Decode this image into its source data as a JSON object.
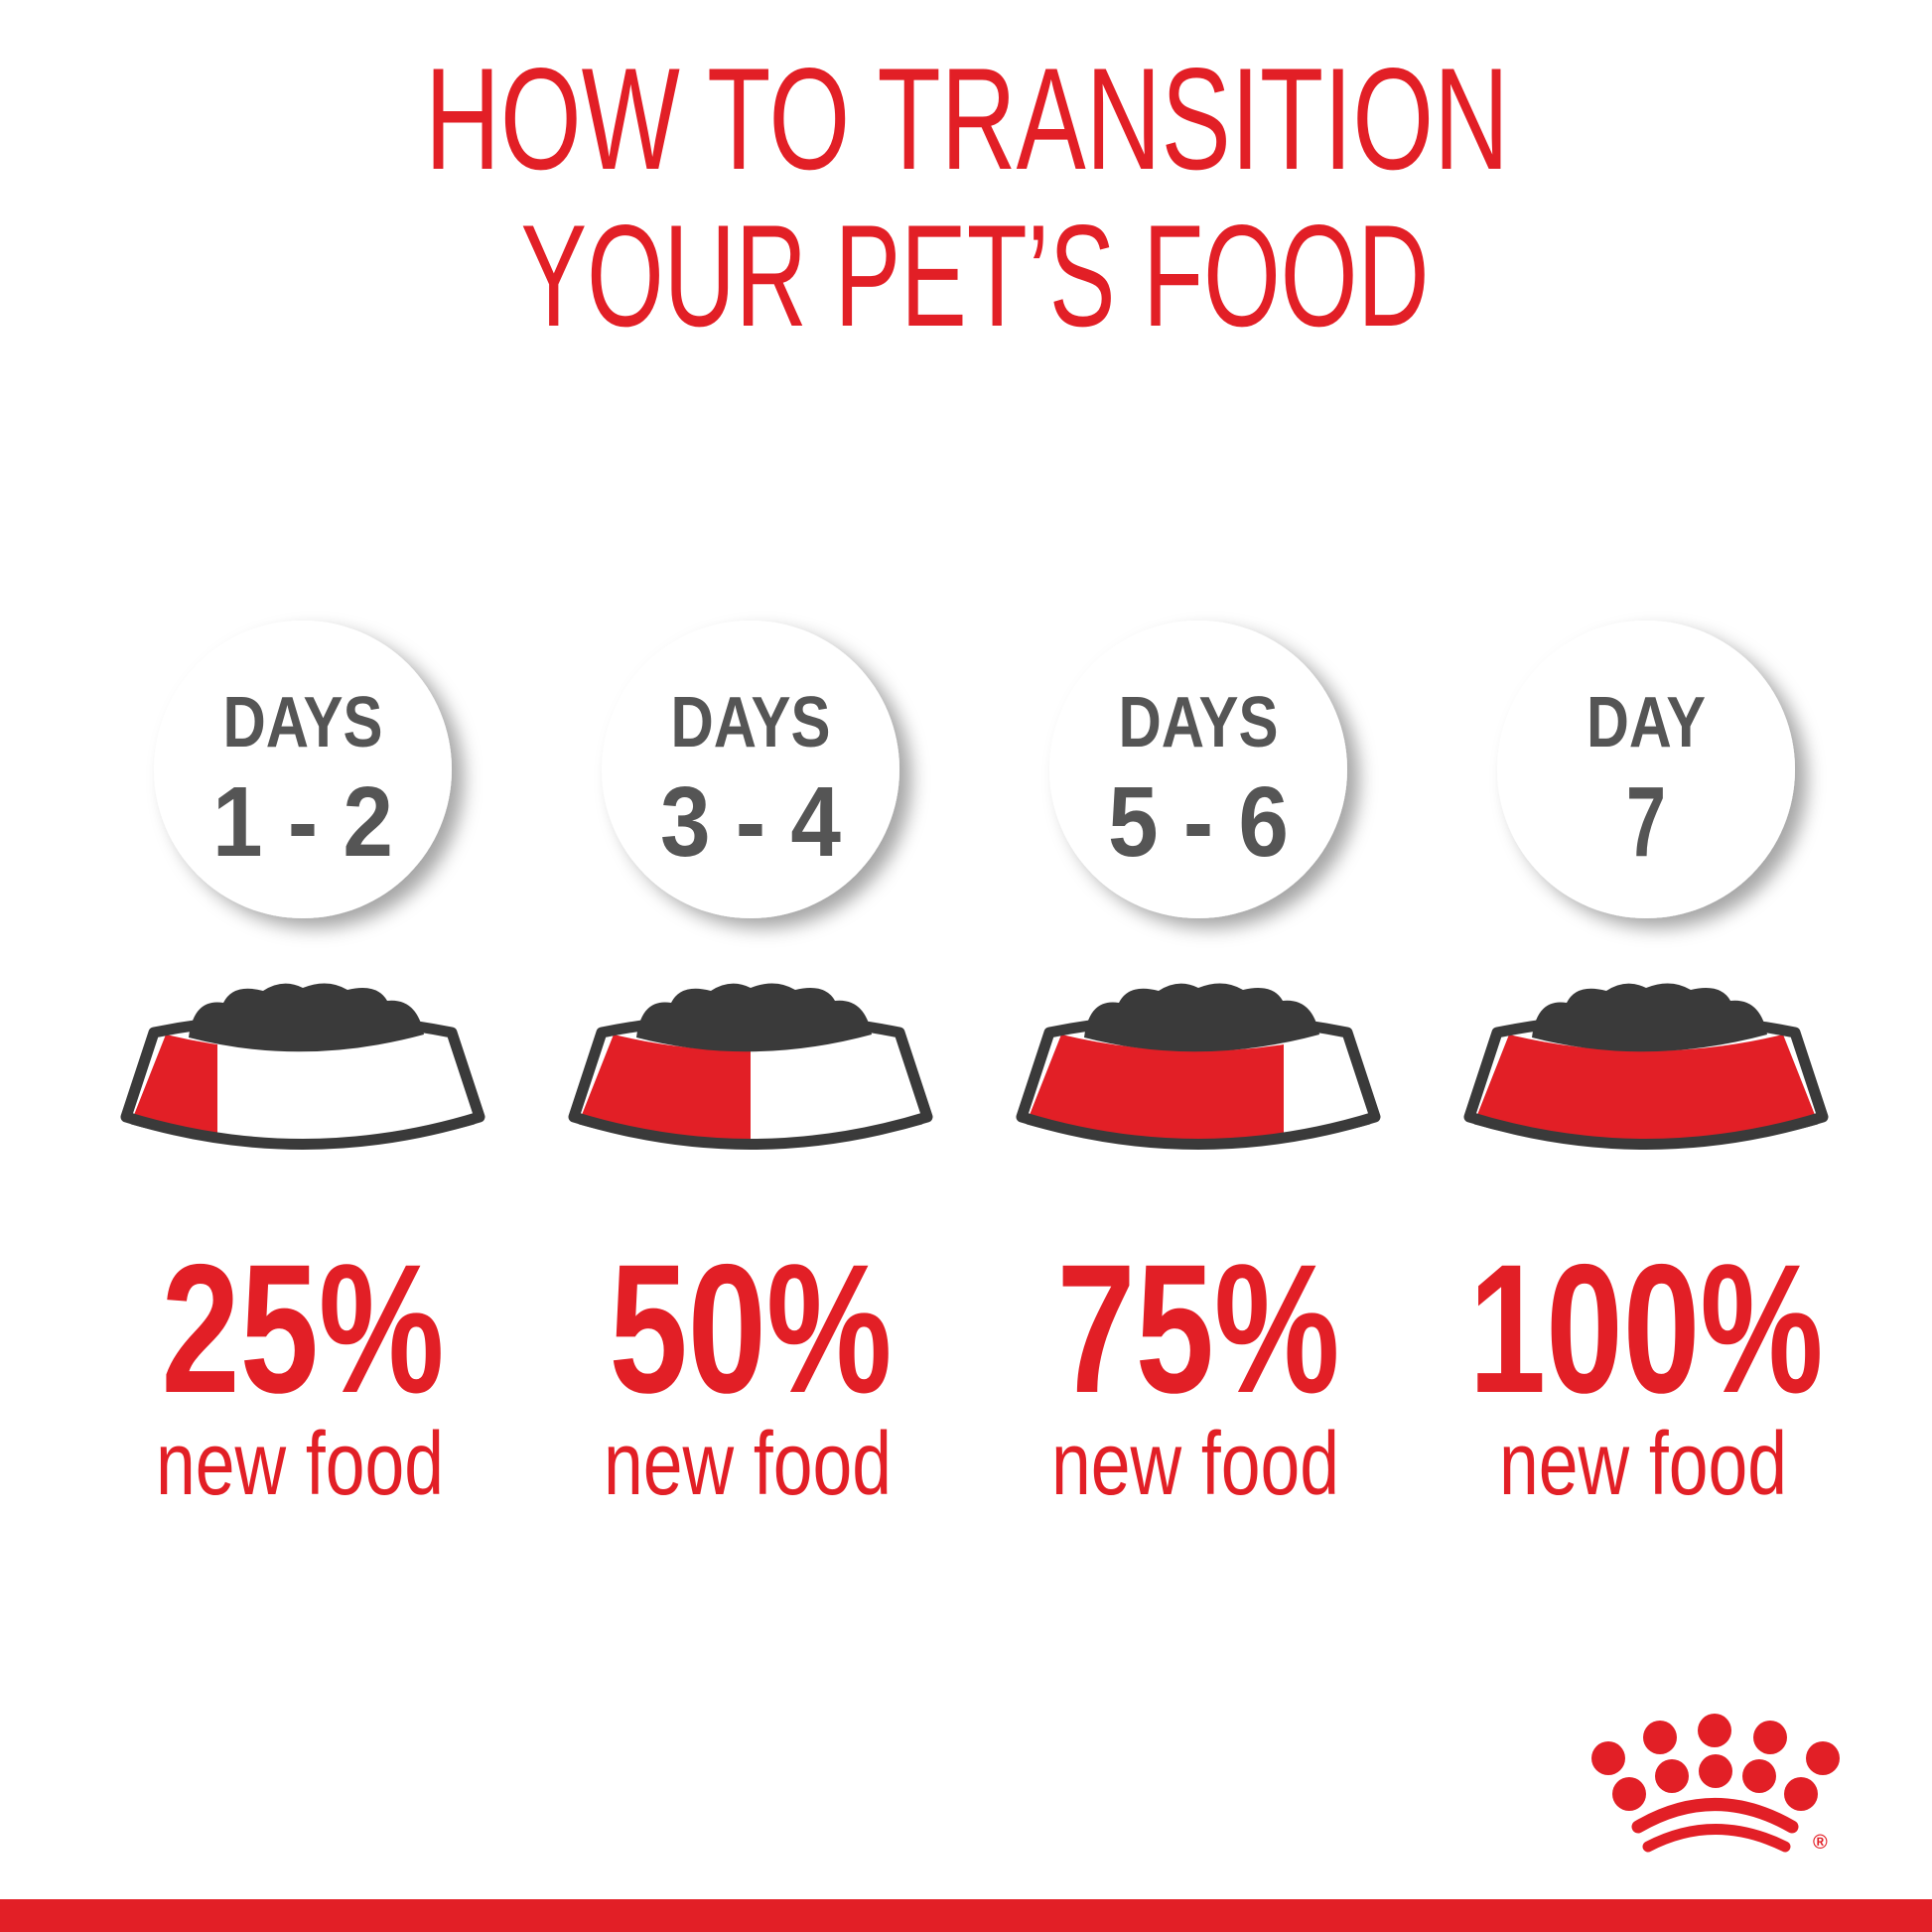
{
  "title": {
    "line1": "HOW TO TRANSITION",
    "line2": "YOUR PET’S FOOD"
  },
  "colors": {
    "accent": "#e21f26",
    "text_gray": "#555555",
    "bowl_dark": "#3a3a3a",
    "background": "#ffffff"
  },
  "steps": [
    {
      "label": "DAYS",
      "days": "1 - 2",
      "percent": "25%",
      "new_food_fraction": 0.25,
      "caption": "new food"
    },
    {
      "label": "DAYS",
      "days": "3 - 4",
      "percent": "50%",
      "new_food_fraction": 0.5,
      "caption": "new food"
    },
    {
      "label": "DAYS",
      "days": "5 - 6",
      "percent": "75%",
      "new_food_fraction": 0.75,
      "caption": "new food"
    },
    {
      "label": "DAY",
      "days": "7",
      "percent": "100%",
      "new_food_fraction": 1.0,
      "caption": "new food"
    }
  ],
  "logo": {
    "icon": "crown-logo-icon",
    "registered_mark": "®"
  }
}
